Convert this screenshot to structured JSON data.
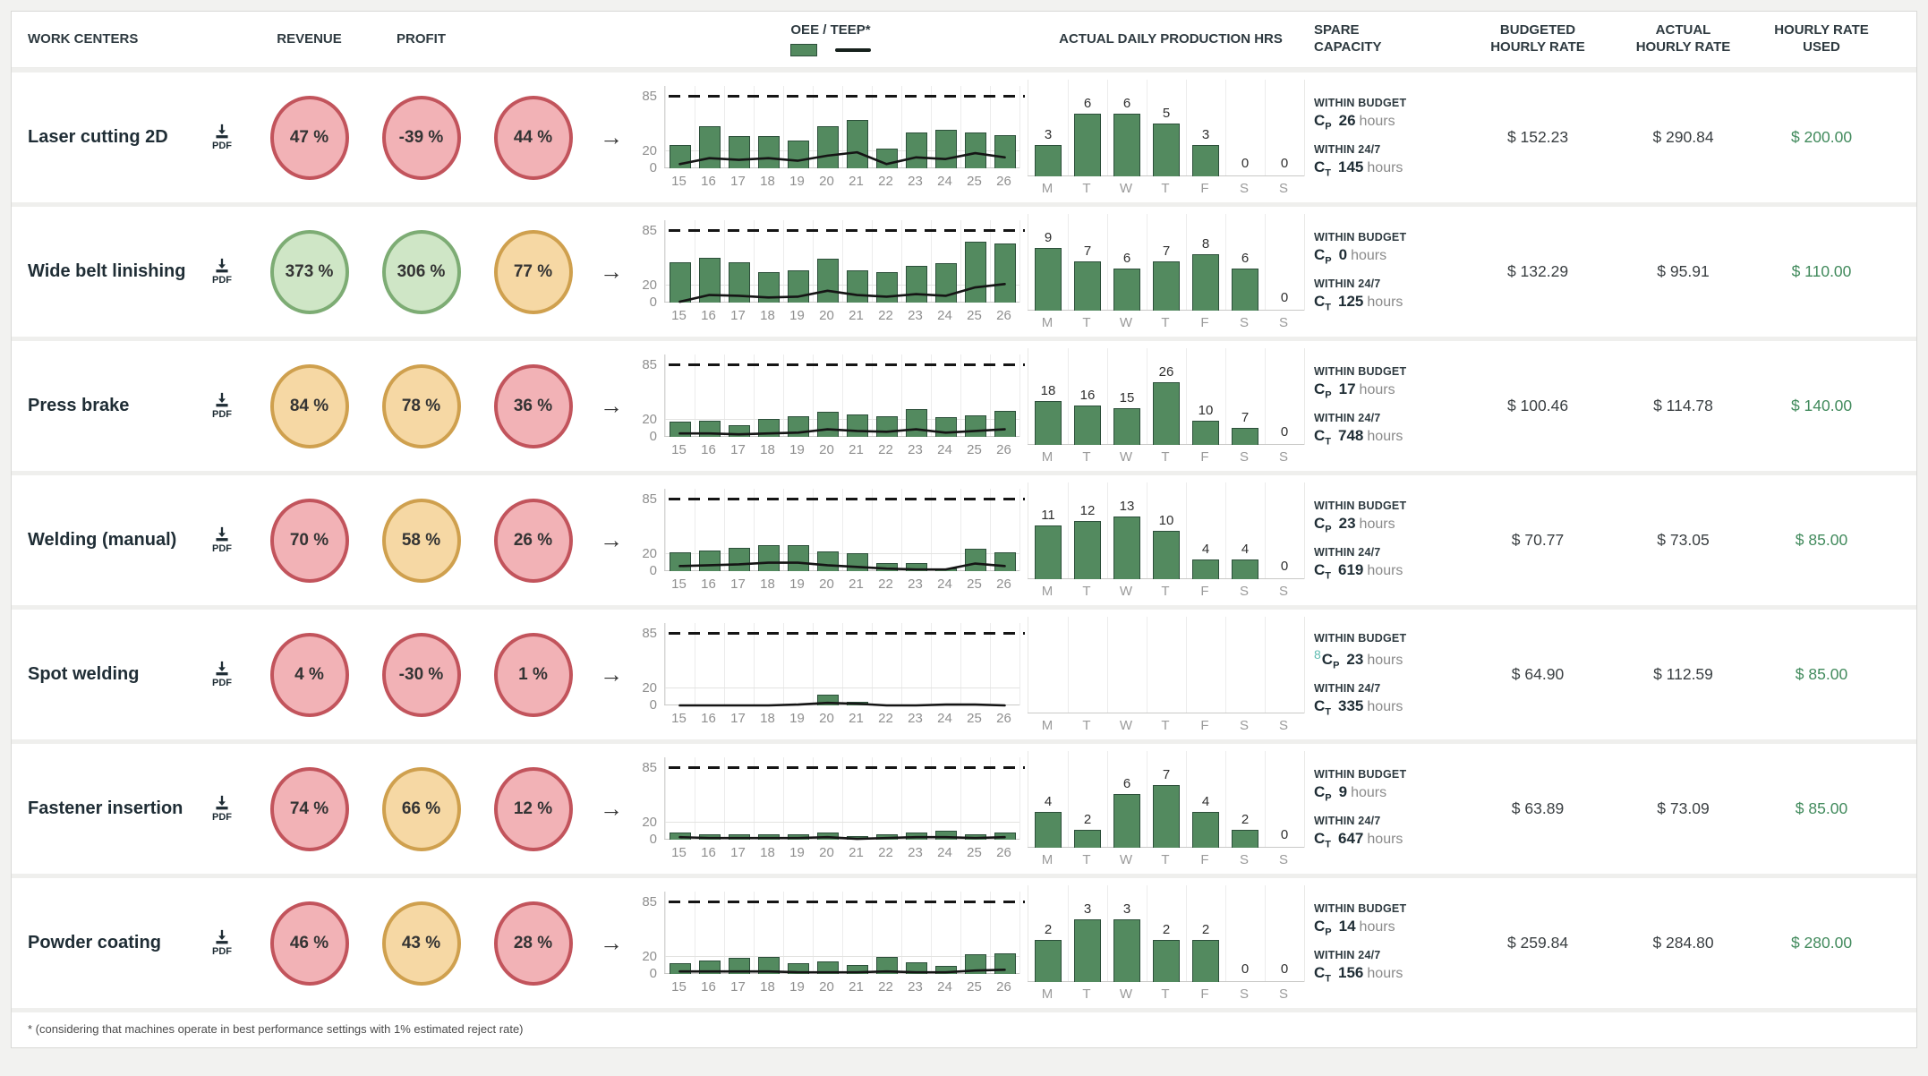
{
  "columns": {
    "work_centers": "WORK CENTERS",
    "revenue": "REVENUE",
    "profit": "PROFIT",
    "oee_teep": "OEE / TEEP*",
    "daily": "ACTUAL DAILY PRODUCTION HRS",
    "spare1": "SPARE",
    "spare2": "CAPACITY",
    "budgeted1": "BUDGETED",
    "budgeted2": "HOURLY RATE",
    "actual1": "ACTUAL",
    "actual2": "HOURLY RATE",
    "used1": "HOURLY RATE",
    "used2": "USED"
  },
  "labels": {
    "pdf": "PDF",
    "arrow": "→",
    "within_budget": "WITHIN BUDGET",
    "within_247": "WITHIN 24/7",
    "hours": "hours",
    "cap_c": "C",
    "sub_p": "P",
    "sub_t": "T"
  },
  "oee_axis": {
    "y": [
      "85",
      "20",
      "0"
    ],
    "target": 85,
    "x": [
      "15",
      "16",
      "17",
      "18",
      "19",
      "20",
      "21",
      "22",
      "23",
      "24",
      "25",
      "26"
    ]
  },
  "daily_axis": {
    "days": [
      "M",
      "T",
      "W",
      "T",
      "F",
      "S",
      "S"
    ]
  },
  "colors": {
    "red_fill": "#f2b2b6",
    "red_border": "#c2545c",
    "green_fill": "#cfe6c6",
    "green_border": "#7dac74",
    "orange_fill": "#f6d8a4",
    "orange_border": "#cfa04e",
    "bar": "#538a5f",
    "teep_line": "#151515",
    "rate_used": "#418a5c"
  },
  "footnote": "* (considering that machines operate in best performance settings with 1% estimated reject rate)",
  "rows": [
    {
      "name": "Laser cutting 2D",
      "kpis": [
        {
          "value": "47 %",
          "color": "red"
        },
        {
          "value": "-39 %",
          "color": "red"
        },
        {
          "value": "44 %",
          "color": "red"
        }
      ],
      "oee_bars": [
        28,
        50,
        38,
        38,
        33,
        50,
        57,
        23,
        43,
        46,
        43,
        39
      ],
      "teep_line": [
        5,
        12,
        10,
        12,
        9,
        15,
        19,
        5,
        13,
        11,
        18,
        13
      ],
      "daily_values": [
        3,
        6,
        6,
        5,
        3,
        0,
        0
      ],
      "spare": {
        "cp": "26",
        "ct": "145",
        "stray": ""
      },
      "budgeted": "$ 152.23",
      "actual": "$ 290.84",
      "used": "$ 200.00"
    },
    {
      "name": "Wide belt linishing",
      "kpis": [
        {
          "value": "373 %",
          "color": "green"
        },
        {
          "value": "306 %",
          "color": "green"
        },
        {
          "value": "77 %",
          "color": "orange"
        }
      ],
      "oee_bars": [
        48,
        53,
        48,
        36,
        38,
        52,
        38,
        36,
        44,
        47,
        72,
        70
      ],
      "teep_line": [
        1,
        9,
        8,
        6,
        7,
        14,
        9,
        7,
        10,
        8,
        18,
        22
      ],
      "daily_values": [
        9,
        7,
        6,
        7,
        8,
        6,
        0
      ],
      "spare": {
        "cp": "0",
        "ct": "125",
        "stray": ""
      },
      "budgeted": "$ 132.29",
      "actual": "$ 95.91",
      "used": "$ 110.00"
    },
    {
      "name": "Press brake",
      "kpis": [
        {
          "value": "84 %",
          "color": "orange"
        },
        {
          "value": "78 %",
          "color": "orange"
        },
        {
          "value": "36 %",
          "color": "red"
        }
      ],
      "oee_bars": [
        18,
        19,
        14,
        21,
        24,
        30,
        27,
        24,
        33,
        23,
        25,
        31
      ],
      "teep_line": [
        4,
        4,
        3,
        4,
        5,
        9,
        7,
        6,
        9,
        5,
        7,
        9
      ],
      "daily_values": [
        18,
        16,
        15,
        26,
        10,
        7,
        0
      ],
      "spare": {
        "cp": "17",
        "ct": "748",
        "stray": ""
      },
      "budgeted": "$ 100.46",
      "actual": "$ 114.78",
      "used": "$ 140.00"
    },
    {
      "name": "Welding (manual)",
      "kpis": [
        {
          "value": "70 %",
          "color": "red"
        },
        {
          "value": "58 %",
          "color": "orange"
        },
        {
          "value": "26 %",
          "color": "red"
        }
      ],
      "oee_bars": [
        22,
        24,
        28,
        31,
        31,
        23,
        21,
        10,
        10,
        3,
        27,
        22
      ],
      "teep_line": [
        6,
        7,
        8,
        10,
        10,
        7,
        5,
        3,
        2,
        2,
        9,
        6
      ],
      "daily_values": [
        11,
        12,
        13,
        10,
        4,
        4,
        0
      ],
      "spare": {
        "cp": "23",
        "ct": "619",
        "stray": ""
      },
      "budgeted": "$ 70.77",
      "actual": "$ 73.05",
      "used": "$ 85.00"
    },
    {
      "name": "Spot welding",
      "kpis": [
        {
          "value": "4 %",
          "color": "red"
        },
        {
          "value": "-30 %",
          "color": "red"
        },
        {
          "value": "1 %",
          "color": "red"
        }
      ],
      "oee_bars": [
        0,
        0,
        0,
        0,
        0,
        13,
        4,
        0,
        0,
        0,
        0,
        0
      ],
      "teep_line": [
        0,
        0,
        0,
        0,
        1,
        3,
        2,
        0,
        0,
        1,
        1,
        0
      ],
      "daily_values": null,
      "spare": {
        "cp": "23",
        "ct": "335",
        "stray": "8"
      },
      "budgeted": "$ 64.90",
      "actual": "$ 112.59",
      "used": "$ 85.00"
    },
    {
      "name": "Fastener insertion",
      "kpis": [
        {
          "value": "74 %",
          "color": "red"
        },
        {
          "value": "66 %",
          "color": "orange"
        },
        {
          "value": "12 %",
          "color": "red"
        }
      ],
      "oee_bars": [
        9,
        6,
        6,
        6,
        6,
        8,
        4,
        6,
        9,
        11,
        6,
        8
      ],
      "teep_line": [
        3,
        2,
        2,
        2,
        2,
        3,
        1,
        2,
        3,
        3,
        2,
        3
      ],
      "daily_values": [
        4,
        2,
        6,
        7,
        4,
        2,
        0
      ],
      "spare": {
        "cp": "9",
        "ct": "647",
        "stray": ""
      },
      "budgeted": "$ 63.89",
      "actual": "$ 73.09",
      "used": "$ 85.00"
    },
    {
      "name": "Powder coating",
      "kpis": [
        {
          "value": "46 %",
          "color": "red"
        },
        {
          "value": "43 %",
          "color": "orange"
        },
        {
          "value": "28 %",
          "color": "red"
        }
      ],
      "oee_bars": [
        13,
        16,
        19,
        20,
        13,
        15,
        11,
        20,
        14,
        10,
        23,
        24
      ],
      "teep_line": [
        3,
        3,
        3,
        3,
        2,
        2,
        2,
        3,
        2,
        2,
        4,
        5
      ],
      "daily_values": [
        2,
        3,
        3,
        2,
        2,
        0,
        0
      ],
      "spare": {
        "cp": "14",
        "ct": "156",
        "stray": ""
      },
      "budgeted": "$ 259.84",
      "actual": "$ 284.80",
      "used": "$ 280.00"
    }
  ]
}
